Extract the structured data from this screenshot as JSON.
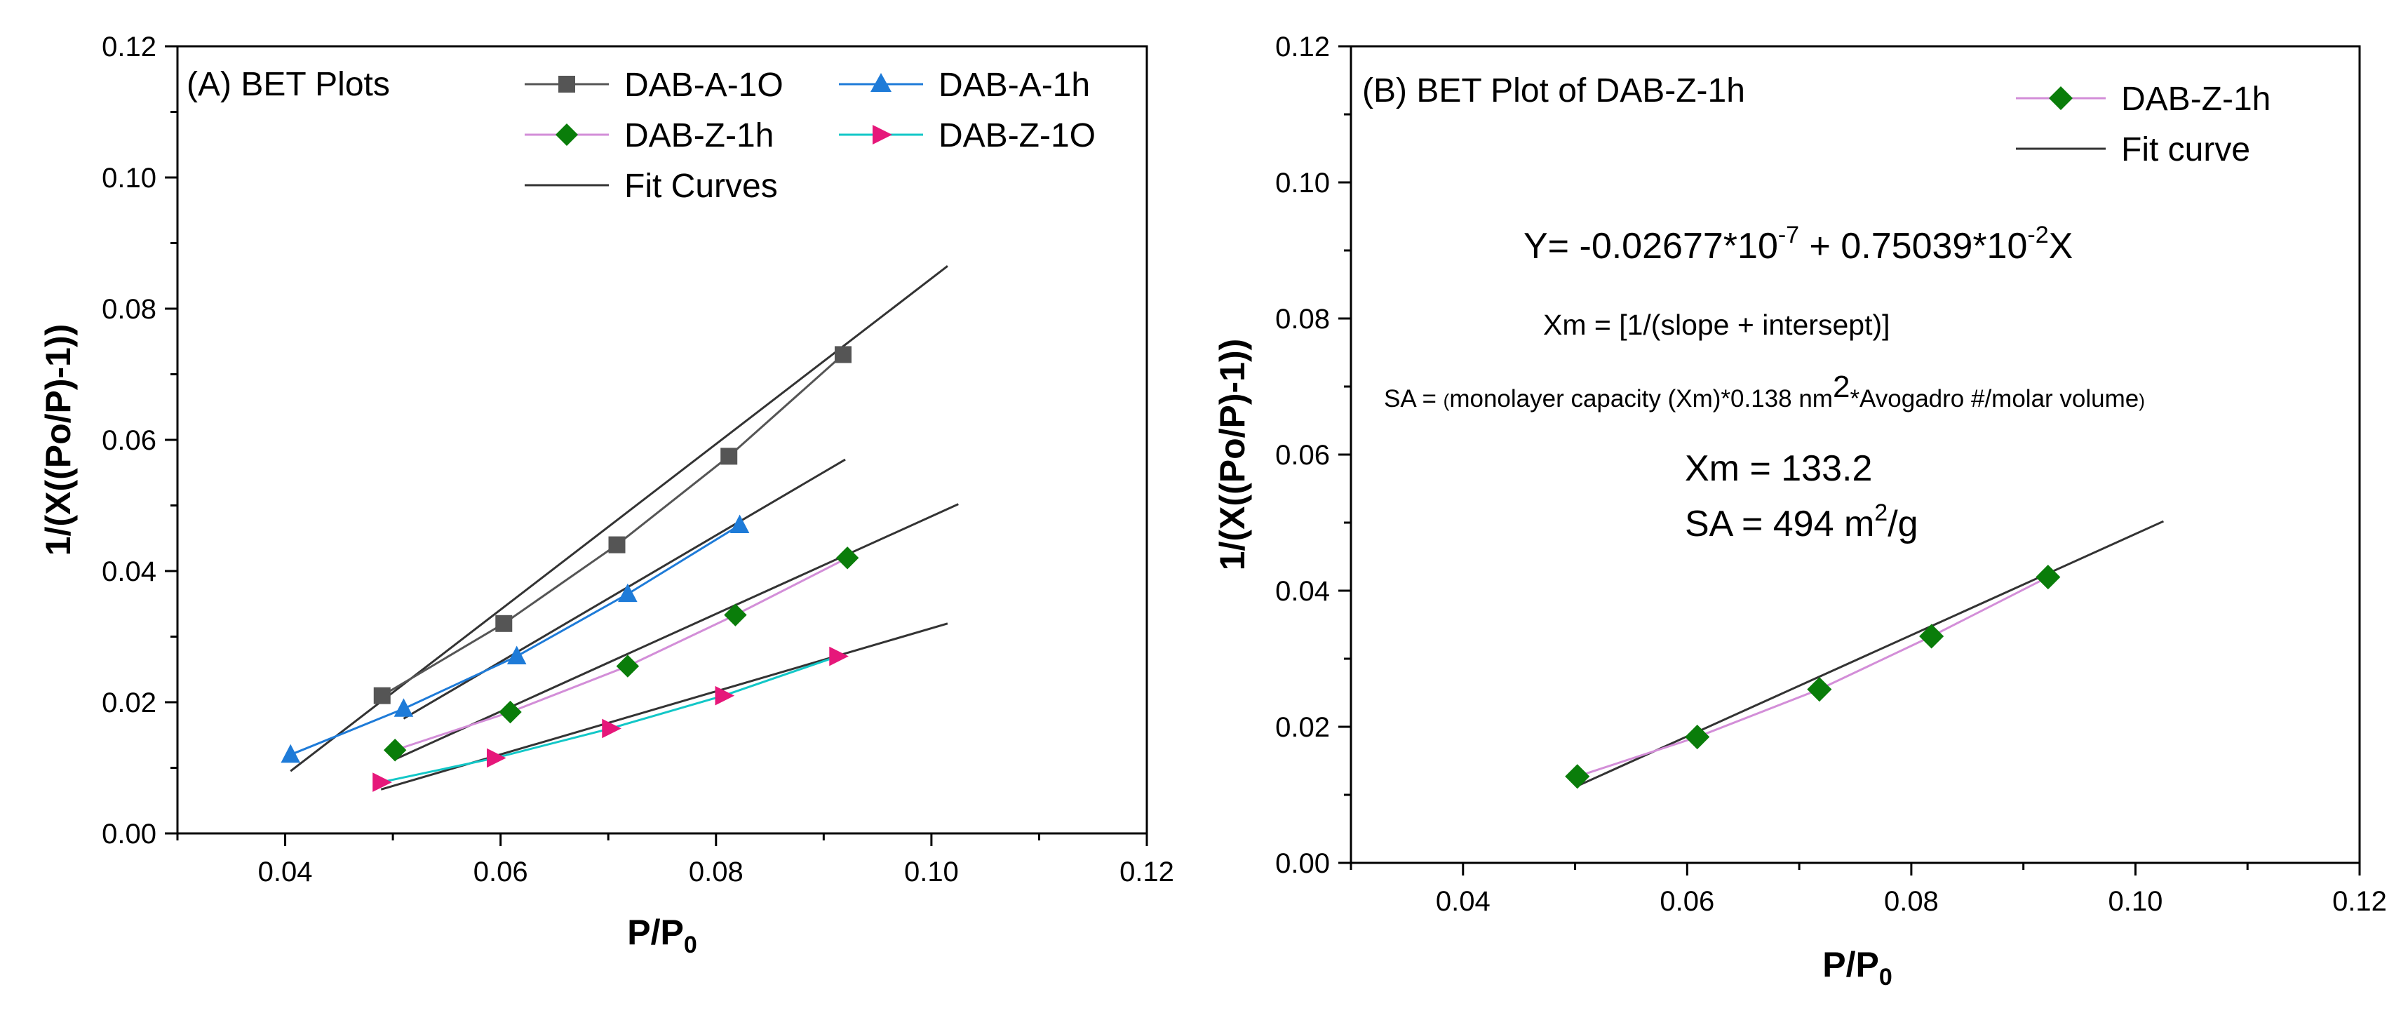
{
  "chart_data": [
    {
      "type": "scatter",
      "panel_title": "(A) BET Plots",
      "xlabel": "P/P",
      "xlabel_sub": "0",
      "ylabel": "1/(X((Po/P)-1))",
      "xlim": [
        0.03,
        0.12
      ],
      "ylim": [
        0.0,
        0.12
      ],
      "x_ticks": [
        "0.04",
        "0.06",
        "0.08",
        "0.10",
        "0.12"
      ],
      "y_ticks": [
        "0.00",
        "0.02",
        "0.04",
        "0.06",
        "0.08",
        "0.10",
        "0.12"
      ],
      "legend_fit_label": "Fit Curves",
      "series": [
        {
          "name": "DAB-A-1O",
          "marker": "square",
          "color": "#555555",
          "line_color": "#555555",
          "x": [
            0.049,
            0.0603,
            0.0708,
            0.0812,
            0.0918
          ],
          "y": [
            0.021,
            0.032,
            0.044,
            0.0575,
            0.073
          ],
          "fit": {
            "x": [
              0.0405,
              0.1015
            ],
            "y": [
              0.0095,
              0.0865
            ]
          }
        },
        {
          "name": "DAB-A-1h",
          "marker": "triangle",
          "color": "#1e7bd8",
          "line_color": "#1e7bd8",
          "x": [
            0.0405,
            0.051,
            0.0615,
            0.0718,
            0.0822
          ],
          "y": [
            0.012,
            0.019,
            0.027,
            0.0365,
            0.047
          ],
          "fit": {
            "x": [
              0.051,
              0.092
            ],
            "y": [
              0.0175,
              0.057
            ]
          }
        },
        {
          "name": "DAB-Z-1h",
          "marker": "diamond",
          "color": "#0a7d0a",
          "line_color": "#d38ed8",
          "x": [
            0.0502,
            0.0609,
            0.0718,
            0.0818,
            0.0922
          ],
          "y": [
            0.0127,
            0.0185,
            0.0255,
            0.0333,
            0.042
          ],
          "fit": {
            "x": [
              0.0502,
              0.1025
            ],
            "y": [
              0.0113,
              0.0502
            ]
          }
        },
        {
          "name": "DAB-Z-1O",
          "marker": "triangle-right",
          "color": "#e6177a",
          "line_color": "#12c7c7",
          "x": [
            0.0489,
            0.0595,
            0.0702,
            0.0807,
            0.0913
          ],
          "y": [
            0.0078,
            0.0115,
            0.016,
            0.021,
            0.027
          ],
          "fit": {
            "x": [
              0.0489,
              0.1015
            ],
            "y": [
              0.0067,
              0.032
            ]
          }
        }
      ]
    },
    {
      "type": "scatter",
      "panel_title": "(B) BET Plot of DAB-Z-1h",
      "xlabel": "P/P",
      "xlabel_sub": "0",
      "ylabel": "1/(X((Po/P)-1))",
      "xlim": [
        0.03,
        0.12
      ],
      "ylim": [
        0.0,
        0.12
      ],
      "x_ticks": [
        "0.04",
        "0.06",
        "0.08",
        "0.10",
        "0.12"
      ],
      "y_ticks": [
        "0.00",
        "0.02",
        "0.04",
        "0.06",
        "0.08",
        "0.10",
        "0.12"
      ],
      "legend_fit_label": "Fit curve",
      "series": [
        {
          "name": "DAB-Z-1h",
          "marker": "diamond",
          "color": "#0a7d0a",
          "line_color": "#d38ed8",
          "x": [
            0.0502,
            0.0609,
            0.0718,
            0.0818,
            0.0922
          ],
          "y": [
            0.0127,
            0.0185,
            0.0255,
            0.0333,
            0.042
          ],
          "fit": {
            "x": [
              0.0502,
              0.1025
            ],
            "y": [
              0.0113,
              0.0502
            ]
          }
        }
      ],
      "annotations": {
        "equation": {
          "prefix": "Y= -0.02677*10",
          "exp1": "-7",
          "middle": " + 0.75039*10",
          "exp2": "-2",
          "suffix": "X"
        },
        "xm_formula": "Xm = [1/(slope + intersept)]",
        "sa_formula": {
          "sa": "SA = ",
          "open": "(",
          "text1": "monolayer capacity (Xm)*0.138 nm",
          "sup": "2",
          "text2": "*Avogadro #/molar volume",
          "close": ")"
        },
        "xm_value": "Xm = 133.2",
        "sa_value": {
          "prefix": "SA = 494 m",
          "sup": "2",
          "suffix": "/g"
        }
      }
    }
  ]
}
